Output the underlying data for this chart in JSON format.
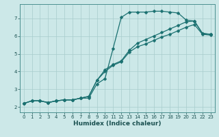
{
  "xlabel": "Humidex (Indice chaleur)",
  "ylabel": "",
  "bg_color": "#cce8e8",
  "line_color": "#1a7070",
  "grid_color": "#a8cccc",
  "xlim": [
    -0.5,
    23.5
  ],
  "ylim": [
    1.7,
    7.8
  ],
  "xticks": [
    0,
    1,
    2,
    3,
    4,
    5,
    6,
    7,
    8,
    9,
    10,
    11,
    12,
    13,
    14,
    15,
    16,
    17,
    18,
    19,
    20,
    21,
    22,
    23
  ],
  "yticks": [
    2,
    3,
    4,
    5,
    6,
    7
  ],
  "line1_x": [
    0,
    1,
    2,
    3,
    4,
    5,
    6,
    7,
    8,
    9,
    10,
    11,
    12,
    13,
    14,
    15,
    16,
    17,
    18,
    19,
    20,
    21,
    22,
    23
  ],
  "line1_y": [
    2.2,
    2.35,
    2.35,
    2.25,
    2.35,
    2.4,
    2.4,
    2.5,
    2.5,
    3.3,
    3.6,
    5.3,
    7.05,
    7.35,
    7.35,
    7.35,
    7.4,
    7.4,
    7.35,
    7.3,
    6.9,
    6.85,
    6.15,
    6.1
  ],
  "line2_x": [
    0,
    1,
    2,
    3,
    4,
    5,
    6,
    7,
    8,
    9,
    10,
    11,
    12,
    13,
    14,
    15,
    16,
    17,
    18,
    19,
    20,
    21,
    22,
    23
  ],
  "line2_y": [
    2.2,
    2.35,
    2.35,
    2.25,
    2.35,
    2.4,
    2.4,
    2.5,
    2.6,
    3.5,
    4.1,
    4.4,
    4.6,
    5.2,
    5.6,
    5.8,
    6.0,
    6.2,
    6.4,
    6.6,
    6.8,
    6.85,
    6.15,
    6.1
  ],
  "line3_x": [
    0,
    1,
    2,
    3,
    4,
    5,
    6,
    7,
    8,
    9,
    10,
    11,
    12,
    13,
    14,
    15,
    16,
    17,
    18,
    19,
    20,
    21,
    22,
    23
  ],
  "line3_y": [
    2.2,
    2.35,
    2.35,
    2.25,
    2.35,
    2.4,
    2.4,
    2.5,
    2.6,
    3.5,
    4.0,
    4.35,
    4.55,
    5.1,
    5.4,
    5.55,
    5.75,
    5.95,
    6.1,
    6.3,
    6.5,
    6.65,
    6.1,
    6.05
  ]
}
